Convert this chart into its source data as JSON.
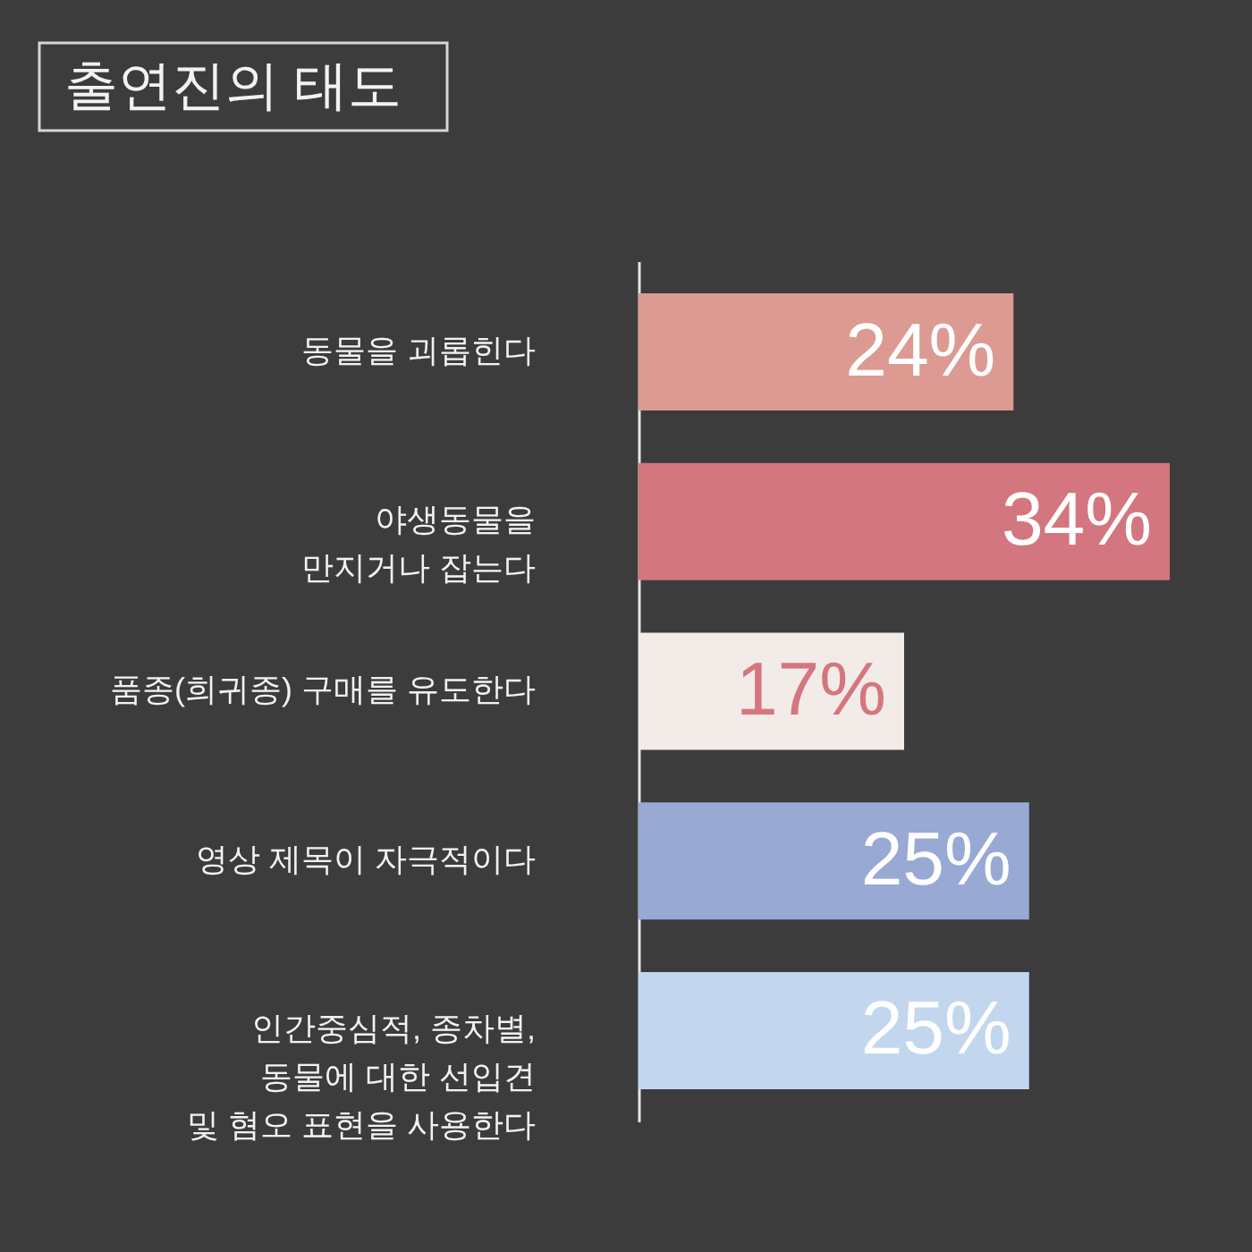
{
  "chart_data": {
    "type": "bar",
    "orientation": "horizontal",
    "title": "출연진의 태도",
    "categories": [
      "동물을 괴롭힌다",
      "야생동물을\n만지거나 잡는다",
      "품종(희귀종) 구매를 유도한다",
      "영상 제목이 자극적이다",
      "인간중심적, 종차별,\n동물에 대한 선입견\n및 혐오 표현을 사용한다"
    ],
    "values": [
      24,
      34,
      17,
      25,
      25
    ],
    "colors": [
      "#dc9a92",
      "#d4767f",
      "#f2ebe7",
      "#98a9d4",
      "#c2d7ee"
    ],
    "value_labels": [
      "24%",
      "34%",
      "17%",
      "25%",
      "25%"
    ],
    "tick_labels": "y"
  }
}
